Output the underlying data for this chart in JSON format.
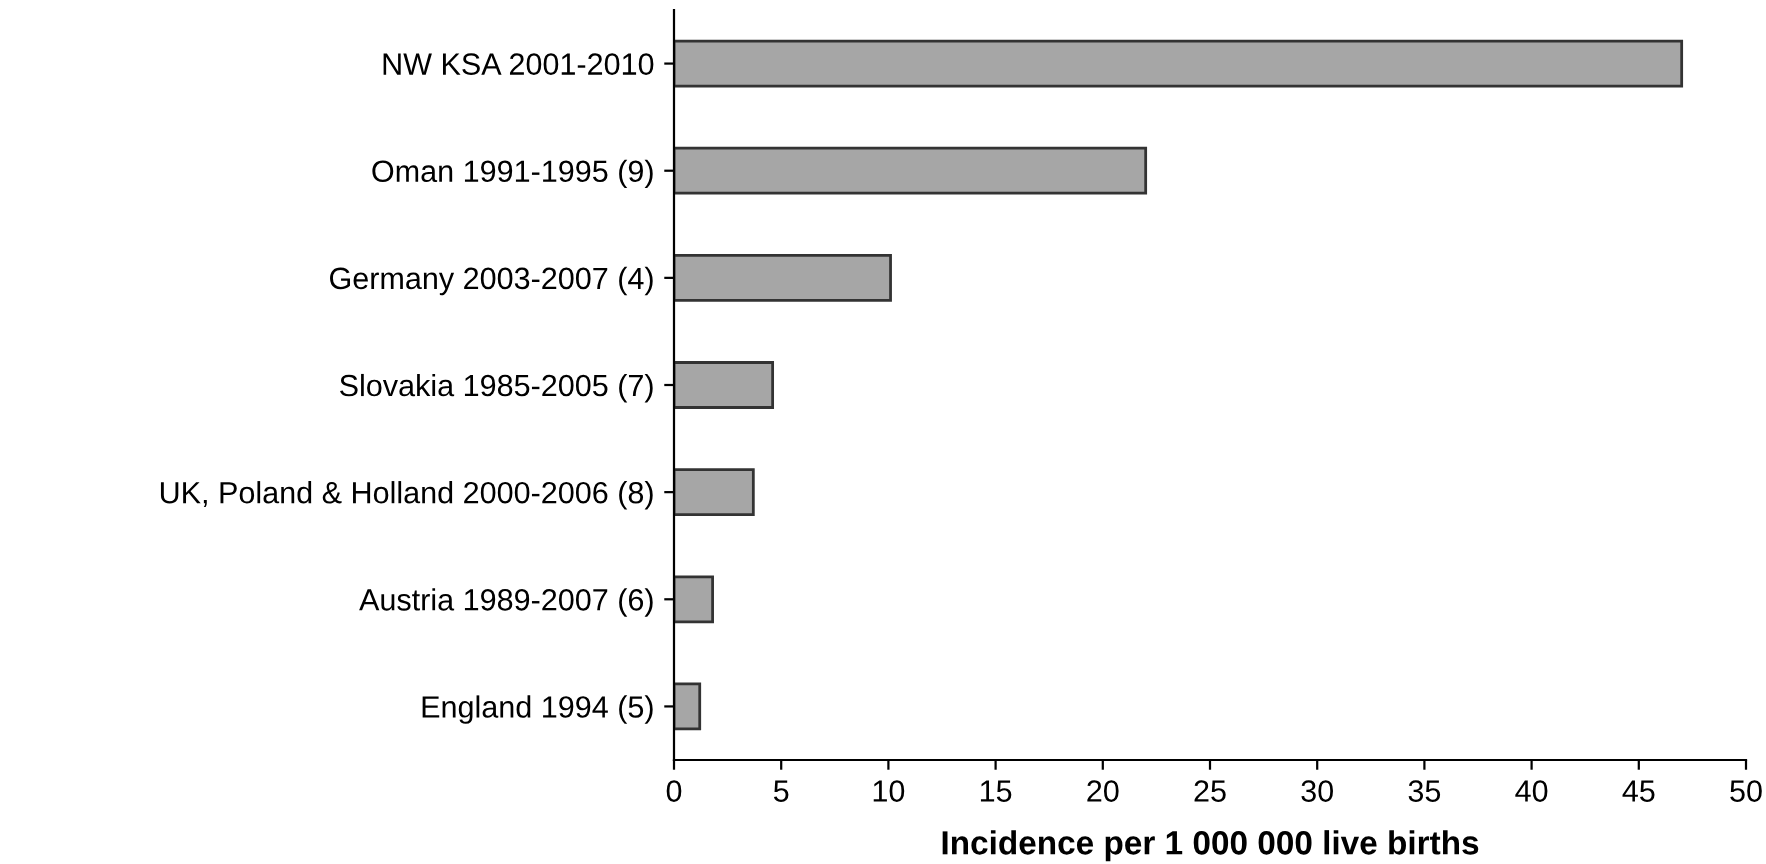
{
  "chart_data": {
    "type": "bar",
    "orientation": "horizontal",
    "xlabel": "Incidence per 1 000 000 live births",
    "categories": [
      "NW KSA 2001-2010",
      "Oman 1991-1995 (9)",
      "Germany 2003-2007 (4)",
      "Slovakia 1985-2005 (7)",
      "UK, Poland & Holland 2000-2006 (8)",
      "Austria 1989-2007 (6)",
      "England 1994 (5)"
    ],
    "values": [
      47,
      22,
      10.1,
      4.6,
      3.7,
      1.8,
      1.2
    ],
    "color": "#a6a6a6",
    "xlim": [
      0,
      50
    ],
    "xticks": [
      0,
      5,
      10,
      15,
      20,
      25,
      30,
      35,
      40,
      45,
      50
    ],
    "grid": false,
    "legend": false
  }
}
